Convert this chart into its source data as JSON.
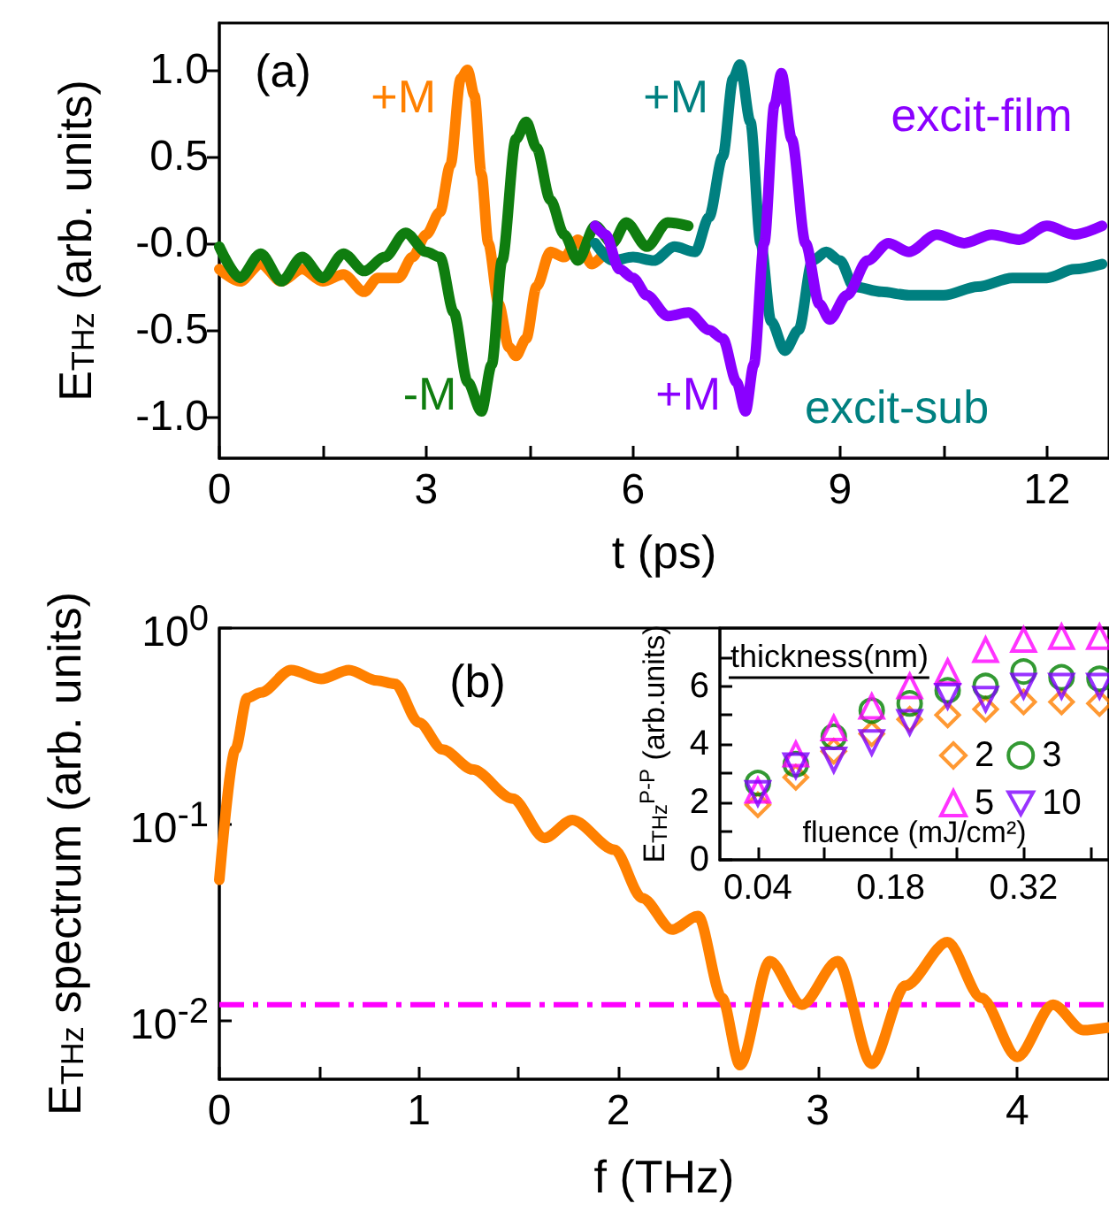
{
  "chart_data": [
    {
      "type": "line",
      "xlabel": "t (ps)",
      "ylabel": "E$_{THz}$ (arb. units)",
      "marker": "none",
      "annotations": [
        "(a)",
        "excit-film",
        "excit-sub"
      ],
      "xlim": [
        0,
        12.9
      ],
      "ylim": [
        -1.24,
        1.27
      ],
      "xticks": [
        0,
        {
          "value": 1.5,
          "label": null
        },
        3,
        {
          "value": 4.5,
          "label": null
        },
        6,
        {
          "value": 7.5,
          "label": null
        },
        9,
        {
          "value": 10.5,
          "label": null
        },
        12
      ],
      "yticks": [
        {
          "value": 1,
          "label": "1.0"
        },
        {
          "value": 0.5,
          "label": "0.5"
        },
        {
          "value": 0,
          "label": "-0.0"
        },
        {
          "value": -0.5,
          "label": "-0.5"
        },
        {
          "value": -1,
          "label": "-1.0"
        }
      ],
      "series": [
        {
          "name": "+M",
          "color": "#ff8000",
          "x": [
            0,
            0.3,
            0.6,
            0.9,
            1.2,
            1.5,
            1.8,
            2.1,
            2.3,
            2.6,
            2.8,
            3.0,
            3.2,
            3.35,
            3.5,
            3.6,
            3.7,
            3.8,
            3.9,
            4.05,
            4.2,
            4.3,
            4.45,
            4.6,
            4.8,
            5.0,
            5.2,
            5.4,
            5.6
          ],
          "values": [
            -0.15,
            -0.22,
            -0.12,
            -0.22,
            -0.15,
            -0.22,
            -0.18,
            -0.28,
            -0.2,
            -0.2,
            -0.08,
            0.05,
            0.18,
            0.45,
            0.95,
            1.0,
            0.85,
            0.4,
            0.0,
            -0.35,
            -0.6,
            -0.65,
            -0.55,
            -0.25,
            -0.05,
            -0.08,
            0.02,
            -0.12,
            -0.05
          ]
        },
        {
          "name": "-M",
          "color": "#0f7d0f",
          "x": [
            0,
            0.3,
            0.6,
            0.9,
            1.2,
            1.5,
            1.8,
            2.1,
            2.4,
            2.7,
            3.0,
            3.2,
            3.4,
            3.6,
            3.8,
            3.95,
            4.1,
            4.3,
            4.45,
            4.6,
            4.8,
            5.0,
            5.2,
            5.45,
            5.7,
            5.9,
            6.2,
            6.5,
            6.8
          ],
          "values": [
            -0.02,
            -0.2,
            -0.06,
            -0.22,
            -0.08,
            -0.2,
            -0.06,
            -0.16,
            -0.08,
            0.06,
            -0.05,
            -0.08,
            -0.4,
            -0.8,
            -0.97,
            -0.7,
            -0.1,
            0.6,
            0.7,
            0.55,
            0.25,
            0.05,
            -0.1,
            0.1,
            0.0,
            0.12,
            -0.02,
            0.12,
            0.1
          ]
        },
        {
          "name": "+M",
          "color": "#008080",
          "x": [
            5.45,
            5.7,
            6.0,
            6.3,
            6.6,
            6.9,
            7.1,
            7.3,
            7.45,
            7.55,
            7.7,
            7.85,
            8.0,
            8.2,
            8.4,
            8.6,
            8.8,
            9.0,
            9.2,
            9.6,
            10.0,
            10.5,
            11.0,
            11.5,
            12.0,
            12.4,
            12.8
          ],
          "values": [
            0.0,
            -0.1,
            -0.08,
            -0.1,
            -0.02,
            -0.05,
            0.15,
            0.5,
            0.95,
            1.03,
            0.7,
            0.0,
            -0.45,
            -0.62,
            -0.5,
            -0.1,
            -0.05,
            -0.1,
            -0.25,
            -0.28,
            -0.3,
            -0.3,
            -0.25,
            -0.2,
            -0.2,
            -0.15,
            -0.12
          ]
        },
        {
          "name": "+M",
          "color": "#8a00ff",
          "x": [
            5.45,
            5.6,
            5.8,
            6.0,
            6.2,
            6.5,
            6.8,
            7.1,
            7.3,
            7.5,
            7.63,
            7.75,
            7.9,
            8.05,
            8.15,
            8.3,
            8.5,
            8.7,
            8.85,
            9.1,
            9.4,
            9.7,
            10.0,
            10.4,
            10.8,
            11.2,
            11.6,
            12.0,
            12.4,
            12.8
          ],
          "values": [
            0.1,
            0.05,
            -0.15,
            -0.2,
            -0.3,
            -0.42,
            -0.4,
            -0.5,
            -0.55,
            -0.8,
            -0.97,
            -0.7,
            0.0,
            0.8,
            0.98,
            0.6,
            0.0,
            -0.35,
            -0.44,
            -0.3,
            -0.1,
            0.0,
            -0.05,
            0.05,
            0.0,
            0.05,
            0.02,
            0.1,
            0.05,
            0.1
          ]
        }
      ]
    },
    {
      "type": "line",
      "xlabel": "f (THz)",
      "ylabel": "E$_{THz}$ spectrum (arb. units)",
      "marker": "none",
      "log": true,
      "annotations": [
        "(b)"
      ],
      "xlim": [
        0,
        4.46
      ],
      "ylim": [
        0.005,
        1
      ],
      "xticks": [
        0,
        {
          "value": 0.5,
          "label": null
        },
        1,
        {
          "value": 1.5,
          "label": null
        },
        2,
        {
          "value": 2.5,
          "label": null
        },
        3,
        {
          "value": 3.5,
          "label": null
        },
        4
      ],
      "yticks": [
        {
          "value": 1,
          "label": "10$^{0}$"
        },
        {
          "value": 0.1,
          "label": "10$^{-1}$"
        },
        {
          "value": 0.01,
          "label": "10$^{-2}$"
        }
      ],
      "ref_lines": [
        {
          "axis": "y",
          "value": 0.012,
          "color": "#ff00ff",
          "line_style": "dash-dot"
        }
      ],
      "series": [
        {
          "color": "#ff8000",
          "x": [
            0,
            0.08,
            0.14,
            0.21,
            0.36,
            0.51,
            0.65,
            0.79,
            0.88,
            1.0,
            1.12,
            1.27,
            1.47,
            1.63,
            1.77,
            1.98,
            2.12,
            2.27,
            2.4,
            2.52,
            2.61,
            2.76,
            2.92,
            3.1,
            3.27,
            3.44,
            3.65,
            3.82,
            4.0,
            4.18,
            4.33,
            4.46
          ],
          "values": [
            0.052,
            0.24,
            0.44,
            0.47,
            0.61,
            0.55,
            0.61,
            0.54,
            0.52,
            0.33,
            0.24,
            0.19,
            0.135,
            0.085,
            0.105,
            0.074,
            0.042,
            0.029,
            0.034,
            0.013,
            0.0059,
            0.02,
            0.012,
            0.02,
            0.006,
            0.015,
            0.025,
            0.013,
            0.0065,
            0.012,
            0.0089,
            0.0092
          ]
        }
      ]
    },
    {
      "type": "scatter",
      "xlabel": "fluence (mJ/cm²)",
      "ylabel": "E$_{THz}$$^{P-P}$ (arb.units)",
      "legend": "bottom right",
      "legend_title": "thickness(nm)",
      "x": [
        0.04,
        0.08,
        0.12,
        0.16,
        0.2,
        0.24,
        0.28,
        0.32,
        0.36,
        0.4
      ],
      "xlim": [
        0,
        0.41
      ],
      "ylim": [
        0,
        8
      ],
      "xticks": [
        0.04,
        {
          "value": 0.11,
          "label": null
        },
        0.18,
        {
          "value": 0.25,
          "label": null
        },
        0.32,
        {
          "value": 0.39,
          "label": null
        }
      ],
      "yticks": [
        0,
        {
          "value": 1,
          "label": null
        },
        2,
        {
          "value": 3,
          "label": null
        },
        4,
        {
          "value": 5,
          "label": null
        },
        6,
        {
          "value": 7,
          "label": null
        }
      ],
      "series": [
        {
          "name": "2",
          "color": "#ff8000",
          "marker": "diamond",
          "values": [
            1.9,
            2.85,
            3.75,
            4.35,
            4.85,
            5.0,
            5.2,
            5.45,
            5.45,
            5.4
          ]
        },
        {
          "name": "3",
          "color": "#008000",
          "marker": "circle",
          "values": [
            2.65,
            3.3,
            4.25,
            5.15,
            5.4,
            5.85,
            6.0,
            6.5,
            6.3,
            6.25
          ]
        },
        {
          "name": "5",
          "color": "#ff00ff",
          "marker": "triangle",
          "values": [
            2.4,
            3.65,
            4.55,
            5.3,
            6.0,
            6.5,
            7.25,
            7.6,
            7.7,
            7.7
          ]
        },
        {
          "name": "10",
          "color": "#8000ff",
          "marker": "triangle-down",
          "values": [
            2.3,
            3.25,
            3.45,
            4.05,
            4.75,
            5.65,
            5.55,
            6.0,
            6.0,
            6.0
          ]
        }
      ]
    }
  ]
}
